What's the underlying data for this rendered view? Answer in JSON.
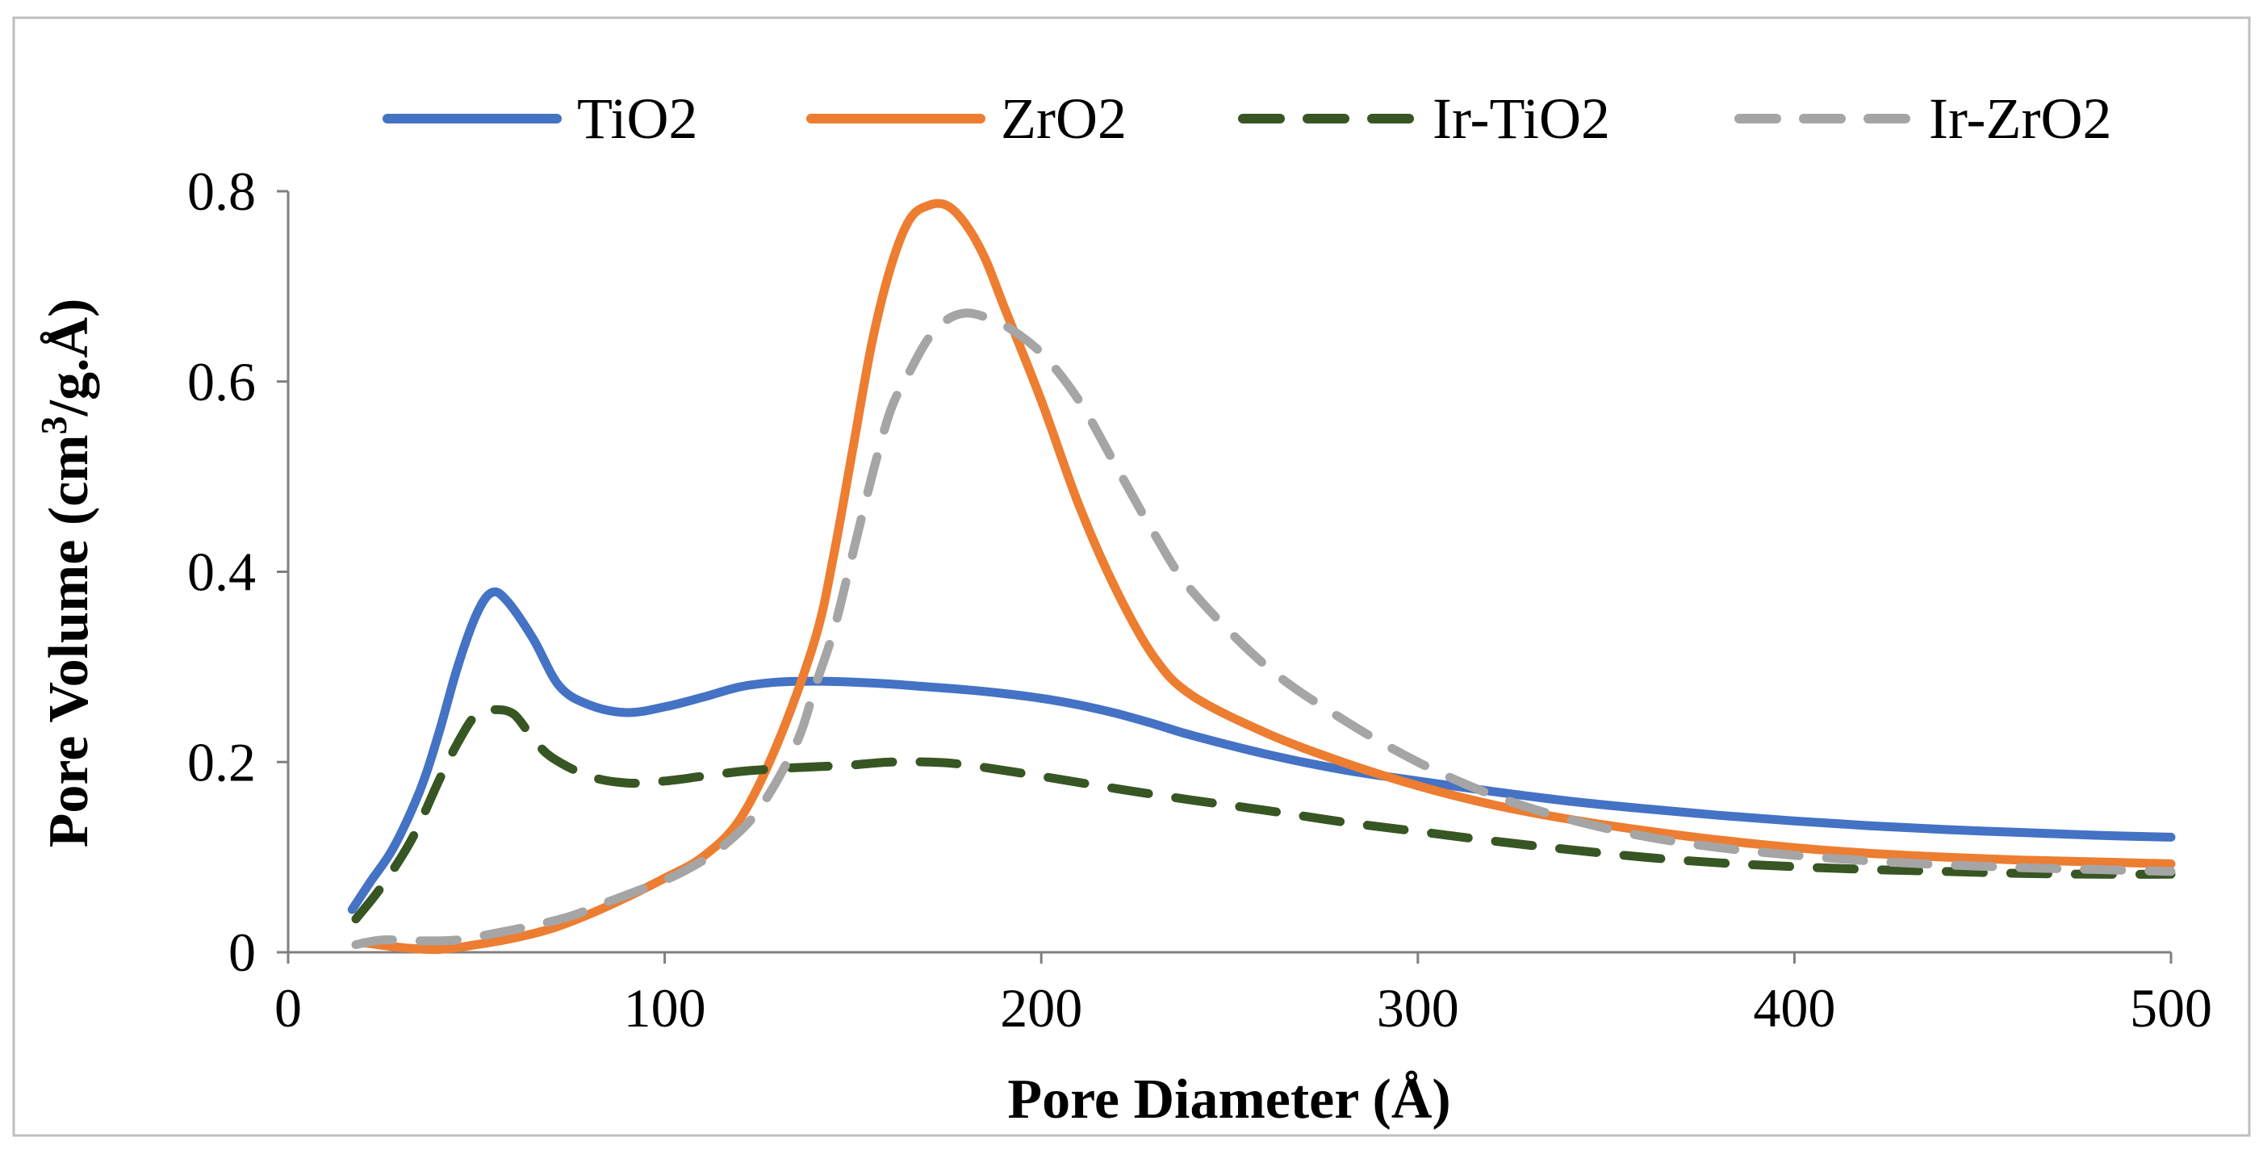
{
  "chart_data": {
    "type": "line",
    "title": "",
    "xlabel": "Pore Diameter (Å)",
    "ylabel_parts": [
      "Pore Volume (cm",
      "3",
      "/g.Å)"
    ],
    "xlim": [
      0,
      500
    ],
    "ylim": [
      0,
      0.8
    ],
    "xticks": [
      0,
      100,
      200,
      300,
      400,
      500
    ],
    "yticks": [
      0,
      0.2,
      0.4,
      0.6,
      0.8
    ],
    "xtick_labels": [
      "0",
      "100",
      "200",
      "300",
      "400",
      "500"
    ],
    "ytick_labels": [
      "0",
      "0.2",
      "0.4",
      "0.6",
      "0.8"
    ],
    "grid": false,
    "legend_position": "top",
    "series": [
      {
        "name": "TiO2",
        "color": "#4472C4",
        "style": "solid",
        "x": [
          17,
          22,
          28,
          35,
          40,
          45,
          50,
          54,
          58,
          65,
          72,
          80,
          90,
          100,
          110,
          120,
          130,
          140,
          150,
          160,
          170,
          180,
          190,
          200,
          210,
          220,
          230,
          240,
          260,
          280,
          300,
          320,
          340,
          360,
          380,
          400,
          420,
          440,
          460,
          480,
          500
        ],
        "y": [
          0.045,
          0.075,
          0.11,
          0.17,
          0.23,
          0.3,
          0.355,
          0.378,
          0.37,
          0.33,
          0.28,
          0.26,
          0.252,
          0.258,
          0.268,
          0.279,
          0.284,
          0.285,
          0.284,
          0.282,
          0.279,
          0.276,
          0.272,
          0.267,
          0.26,
          0.251,
          0.24,
          0.228,
          0.208,
          0.192,
          0.18,
          0.169,
          0.159,
          0.151,
          0.144,
          0.138,
          0.133,
          0.129,
          0.126,
          0.123,
          0.121
        ]
      },
      {
        "name": "ZrO2",
        "color": "#ED7D31",
        "style": "solid",
        "x": [
          20,
          30,
          40,
          50,
          60,
          70,
          80,
          90,
          100,
          110,
          120,
          130,
          140,
          145,
          150,
          155,
          160,
          165,
          170,
          175,
          180,
          185,
          190,
          200,
          210,
          220,
          230,
          240,
          260,
          280,
          300,
          320,
          340,
          360,
          380,
          400,
          420,
          440,
          460,
          480,
          500
        ],
        "y": [
          0.01,
          0.005,
          0.003,
          0.008,
          0.015,
          0.025,
          0.04,
          0.058,
          0.078,
          0.1,
          0.14,
          0.22,
          0.33,
          0.42,
          0.53,
          0.64,
          0.72,
          0.77,
          0.785,
          0.785,
          0.765,
          0.73,
          0.68,
          0.58,
          0.47,
          0.38,
          0.31,
          0.27,
          0.23,
          0.2,
          0.175,
          0.155,
          0.14,
          0.128,
          0.118,
          0.11,
          0.104,
          0.1,
          0.097,
          0.095,
          0.093
        ]
      },
      {
        "name": "Ir-TiO2",
        "color": "#375623",
        "style": "dash",
        "x": [
          18,
          25,
          33,
          40,
          45,
          50,
          55,
          60,
          65,
          70,
          80,
          90,
          100,
          110,
          120,
          130,
          140,
          150,
          160,
          170,
          180,
          200,
          220,
          240,
          260,
          280,
          300,
          320,
          340,
          360,
          380,
          400,
          420,
          440,
          460,
          480,
          500
        ],
        "y": [
          0.035,
          0.07,
          0.12,
          0.18,
          0.22,
          0.25,
          0.255,
          0.25,
          0.225,
          0.205,
          0.185,
          0.178,
          0.18,
          0.185,
          0.19,
          0.193,
          0.195,
          0.197,
          0.2,
          0.2,
          0.197,
          0.185,
          0.172,
          0.16,
          0.149,
          0.137,
          0.127,
          0.117,
          0.108,
          0.1,
          0.094,
          0.09,
          0.087,
          0.085,
          0.083,
          0.082,
          0.082
        ]
      },
      {
        "name": "Ir-ZrO2",
        "color": "#A5A5A5",
        "style": "dash",
        "x": [
          18,
          25,
          35,
          45,
          55,
          65,
          75,
          85,
          95,
          105,
          115,
          125,
          135,
          140,
          145,
          150,
          155,
          160,
          165,
          170,
          175,
          180,
          185,
          190,
          200,
          210,
          220,
          230,
          240,
          260,
          280,
          300,
          320,
          340,
          360,
          380,
          400,
          420,
          440,
          460,
          480,
          500
        ],
        "y": [
          0.008,
          0.013,
          0.012,
          0.013,
          0.02,
          0.028,
          0.038,
          0.053,
          0.068,
          0.085,
          0.11,
          0.15,
          0.22,
          0.28,
          0.34,
          0.42,
          0.5,
          0.57,
          0.61,
          0.645,
          0.665,
          0.672,
          0.668,
          0.66,
          0.63,
          0.58,
          0.51,
          0.44,
          0.38,
          0.3,
          0.245,
          0.2,
          0.165,
          0.14,
          0.122,
          0.11,
          0.102,
          0.096,
          0.092,
          0.089,
          0.087,
          0.085
        ]
      }
    ]
  }
}
